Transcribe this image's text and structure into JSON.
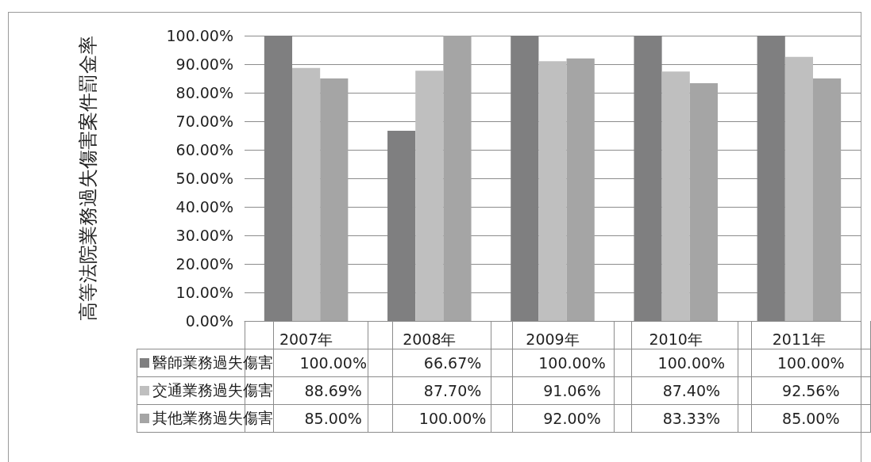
{
  "chart_data": {
    "type": "bar",
    "ylabel": "高等法院業務過失傷害案件罰金率",
    "categories": [
      "2007年",
      "2008年",
      "2009年",
      "2010年",
      "2011年"
    ],
    "series": [
      {
        "name": "醫師業務過失傷害",
        "color": "#7f7f80",
        "values": [
          100,
          66.67,
          100,
          100,
          100
        ],
        "value_labels": [
          "100.00%",
          "66.67%",
          "100.00%",
          "100.00%",
          "100.00%"
        ]
      },
      {
        "name": "交通業務過失傷害",
        "color": "#bfbfbf",
        "values": [
          88.69,
          87.7,
          91.06,
          87.4,
          92.56
        ],
        "value_labels": [
          "88.69%",
          "87.70%",
          "91.06%",
          "87.40%",
          "92.56%"
        ]
      },
      {
        "name": "其他業務過失傷害",
        "color": "#a5a5a5",
        "values": [
          85,
          100,
          92,
          83.33,
          85
        ],
        "value_labels": [
          "85.00%",
          "100.00%",
          "92.00%",
          "83.33%",
          "85.00%"
        ]
      }
    ],
    "ylim": [
      0,
      100
    ],
    "yticks": [
      {
        "value": 0,
        "label": "0.00%"
      },
      {
        "value": 10,
        "label": "10.00%"
      },
      {
        "value": 20,
        "label": "20.00%"
      },
      {
        "value": 30,
        "label": "30.00%"
      },
      {
        "value": 40,
        "label": "40.00%"
      },
      {
        "value": 50,
        "label": "50.00%"
      },
      {
        "value": 60,
        "label": "60.00%"
      },
      {
        "value": 70,
        "label": "70.00%"
      },
      {
        "value": 80,
        "label": "80.00%"
      },
      {
        "value": 90,
        "label": "90.00%"
      },
      {
        "value": 100,
        "label": "100.00%"
      }
    ],
    "grid": "y",
    "legend": "bottom"
  }
}
